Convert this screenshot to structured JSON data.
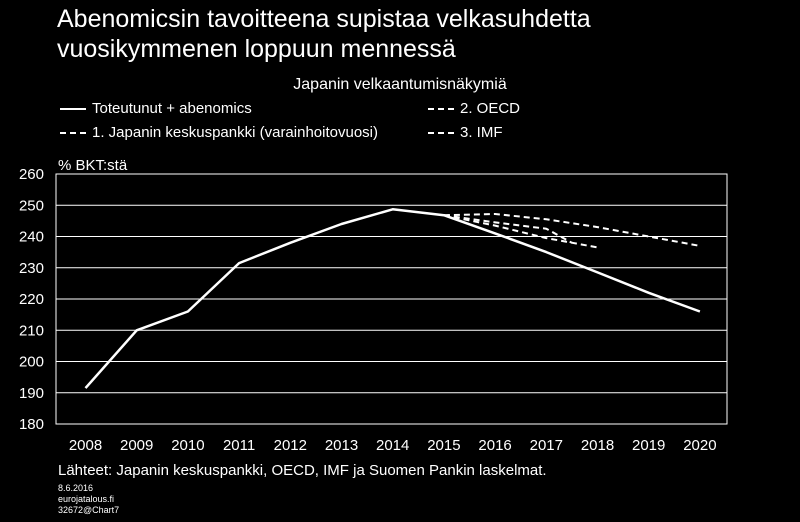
{
  "title_line1": "Abenomicsin tavoitteena supistaa velkasuhdetta",
  "title_line2": "vuosikymmenen loppuun mennessä",
  "chart_data": {
    "type": "line",
    "title": "Japanin velkaantumisnäkymiä",
    "ylabel": "% BKT:stä",
    "xlabel": "",
    "ylim": [
      180,
      260
    ],
    "yticks": [
      180,
      190,
      200,
      210,
      220,
      230,
      240,
      250,
      260
    ],
    "x": [
      2008,
      2009,
      2010,
      2011,
      2012,
      2013,
      2014,
      2015,
      2016,
      2017,
      2018,
      2019,
      2020
    ],
    "grid": true,
    "legend_position": "top",
    "series": [
      {
        "name": "Toteutunut + abenomics",
        "style": "solid",
        "points": [
          [
            2008,
            191.5
          ],
          [
            2009,
            210
          ],
          [
            2010,
            216
          ],
          [
            2011,
            231.5
          ],
          [
            2012,
            238
          ],
          [
            2013,
            244
          ],
          [
            2014,
            248.7
          ],
          [
            2015,
            246.8
          ],
          [
            2016,
            241
          ],
          [
            2017,
            235
          ],
          [
            2018,
            228.5
          ],
          [
            2019,
            222
          ],
          [
            2020,
            216
          ]
        ]
      },
      {
        "name": "2. OECD",
        "style": "dashed",
        "points": [
          [
            2015,
            246.8
          ],
          [
            2016,
            247.2
          ],
          [
            2017,
            245.5
          ],
          [
            2018,
            243
          ],
          [
            2019,
            240
          ],
          [
            2020,
            237
          ]
        ]
      },
      {
        "name": "1. Japanin keskuspankki (varainhoitovuosi)",
        "style": "dashed",
        "points": [
          [
            2015,
            246.8
          ],
          [
            2016,
            244.5
          ],
          [
            2017,
            242.5
          ],
          [
            2017.5,
            238
          ]
        ]
      },
      {
        "name": "3. IMF",
        "style": "dashed",
        "points": [
          [
            2015,
            246.8
          ],
          [
            2016,
            243.5
          ],
          [
            2017,
            239.5
          ],
          [
            2018,
            236.5
          ]
        ]
      }
    ]
  },
  "source": "Lähteet: Japanin keskuspankki, OECD, IMF ja Suomen Pankin laskelmat.",
  "meta": [
    "8.6.2016",
    "eurojatalous.fi",
    "32672@Chart7"
  ]
}
